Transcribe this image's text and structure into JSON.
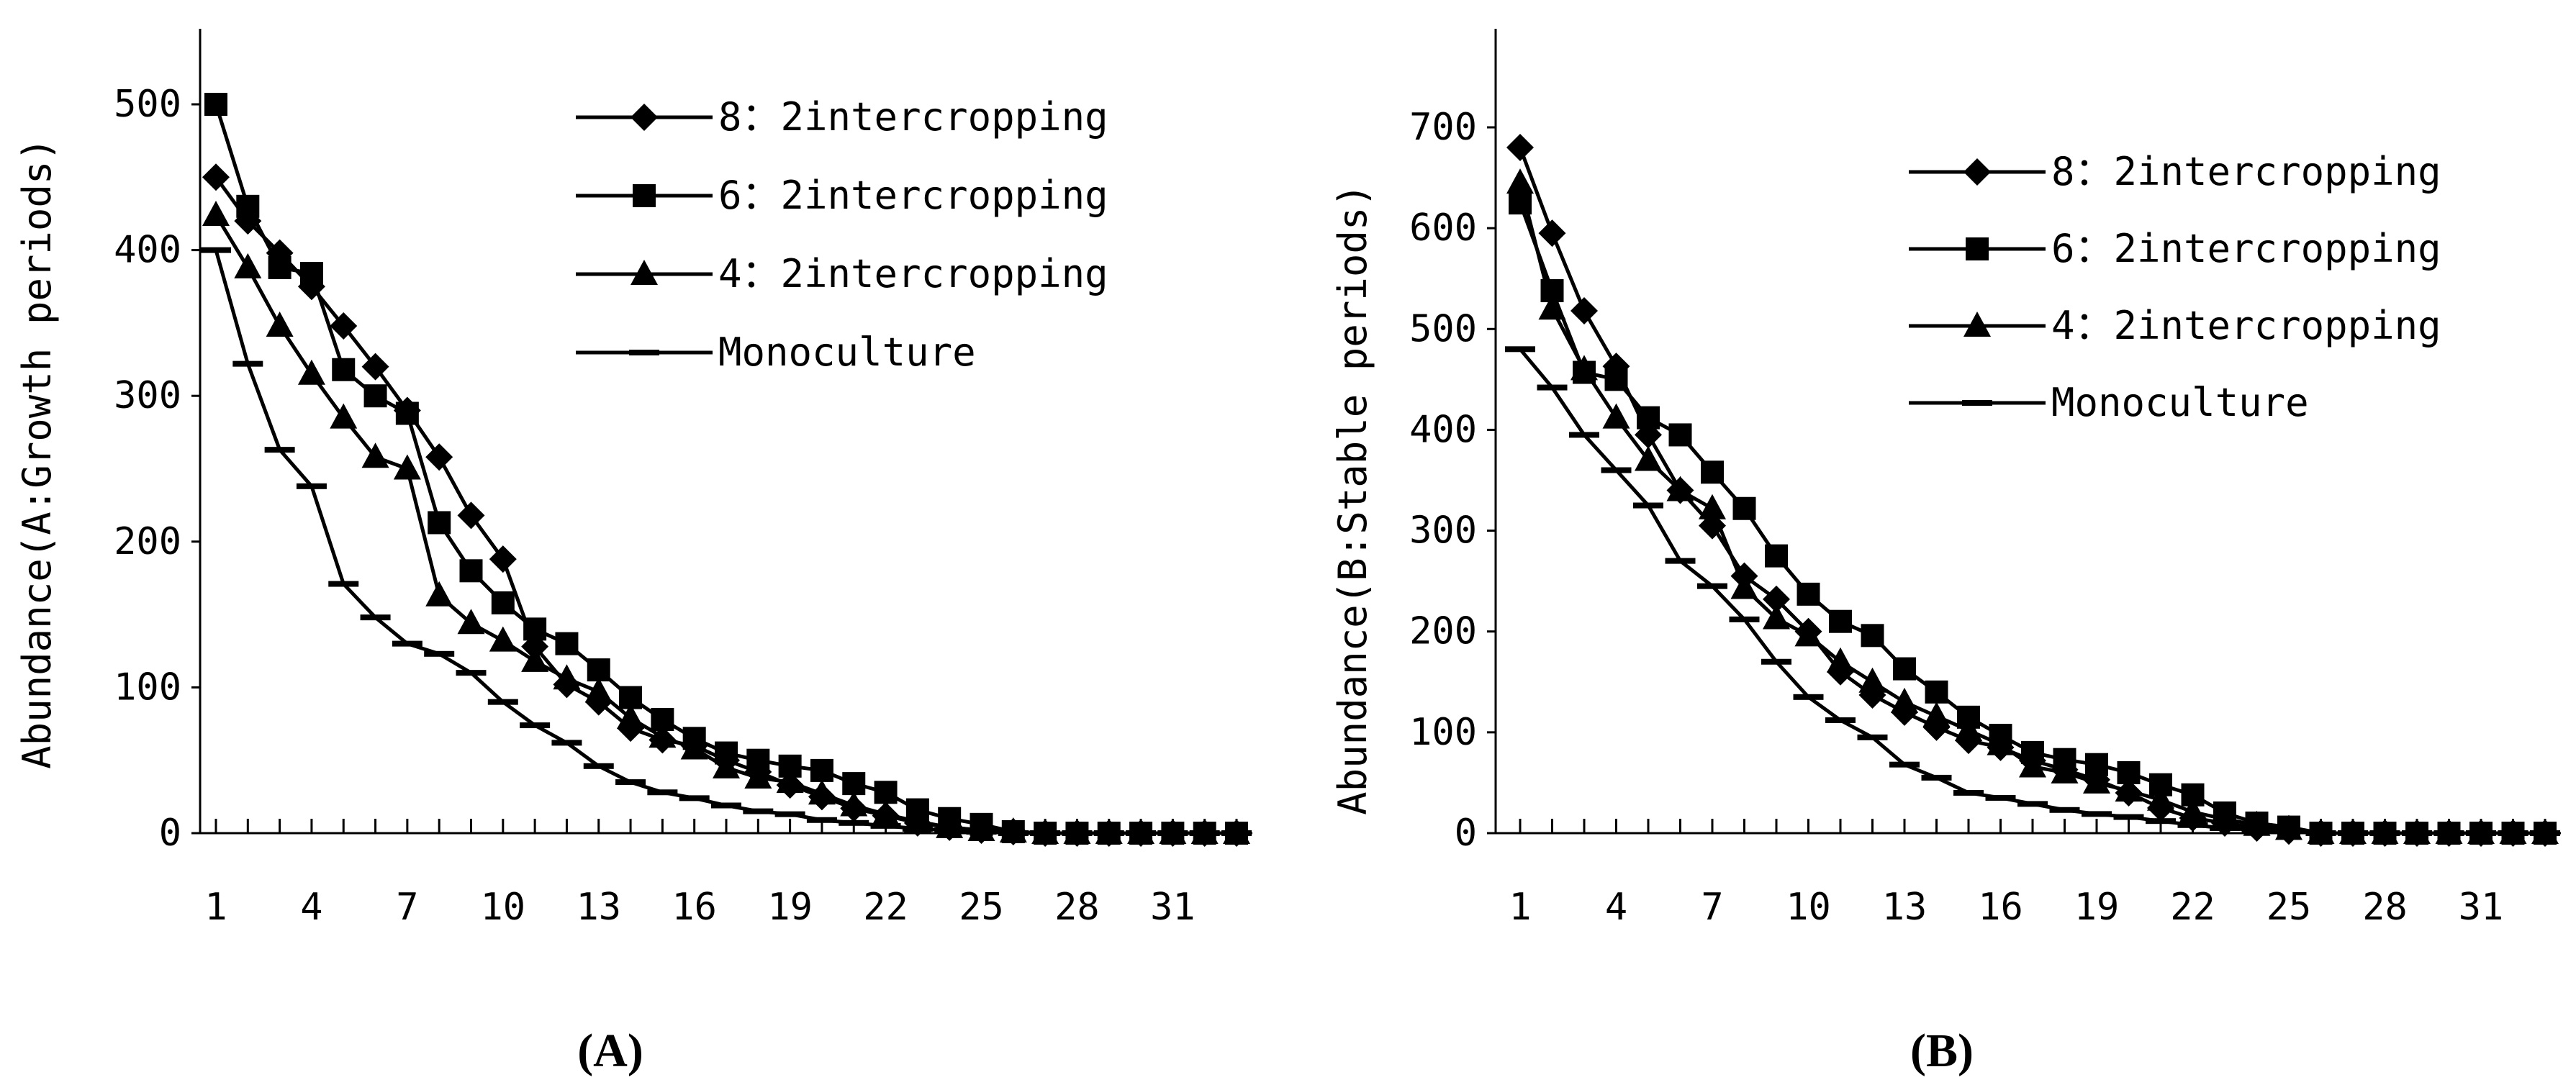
{
  "figure": {
    "panel_labels": [
      "(A)",
      "(B)"
    ]
  },
  "chart_data": [
    {
      "type": "line",
      "panel": "(A)",
      "ylabel": "Abundance(A:Growth periods)",
      "xlabel": "",
      "xlim": [
        1,
        33
      ],
      "ylim": [
        0,
        500
      ],
      "x_ticks": [
        "1",
        "4",
        "7",
        "10",
        "13",
        "16",
        "19",
        "22",
        "25",
        "28",
        "31"
      ],
      "y_ticks": [
        "0",
        "100",
        "200",
        "300",
        "400",
        "500"
      ],
      "legend_position": "top-right",
      "grid": false,
      "x": [
        1,
        2,
        3,
        4,
        5,
        6,
        7,
        8,
        9,
        10,
        11,
        12,
        13,
        14,
        15,
        16,
        17,
        18,
        19,
        20,
        21,
        22,
        23,
        24,
        25,
        26,
        27,
        28,
        29,
        30,
        31,
        32,
        33
      ],
      "series": [
        {
          "name": "8：2intercropping",
          "marker": "diamond",
          "values": [
            450,
            420,
            398,
            375,
            348,
            320,
            290,
            258,
            218,
            188,
            128,
            102,
            90,
            72,
            64,
            60,
            50,
            42,
            33,
            25,
            17,
            12,
            7,
            4,
            2,
            1,
            0,
            0,
            0,
            0,
            0,
            0,
            0
          ]
        },
        {
          "name": "6：2intercropping",
          "marker": "square",
          "values": [
            500,
            430,
            388,
            384,
            318,
            300,
            288,
            213,
            180,
            158,
            140,
            130,
            112,
            93,
            78,
            65,
            55,
            50,
            46,
            43,
            34,
            28,
            16,
            10,
            6,
            1,
            0,
            0,
            0,
            0,
            0,
            0,
            0
          ]
        },
        {
          "name": "4：2intercropping",
          "marker": "triangle",
          "values": [
            424,
            388,
            348,
            315,
            285,
            258,
            250,
            163,
            144,
            132,
            118,
            106,
            97,
            79,
            66,
            58,
            45,
            38,
            35,
            27,
            19,
            13,
            8,
            4,
            2,
            1,
            0,
            0,
            0,
            0,
            0,
            0,
            0
          ]
        },
        {
          "name": "Monoculture",
          "marker": "dash",
          "values": [
            400,
            322,
            263,
            238,
            171,
            148,
            130,
            123,
            110,
            90,
            74,
            62,
            46,
            35,
            28,
            24,
            19,
            15,
            13,
            9,
            7,
            5,
            3,
            2,
            1,
            0,
            0,
            0,
            0,
            0,
            0,
            0,
            0
          ]
        }
      ]
    },
    {
      "type": "line",
      "panel": "(B)",
      "ylabel": "Abundance(B:Stable periods)",
      "xlabel": "",
      "xlim": [
        1,
        33
      ],
      "ylim": [
        0,
        700
      ],
      "x_ticks": [
        "1",
        "4",
        "7",
        "10",
        "13",
        "16",
        "19",
        "22",
        "25",
        "28",
        "31"
      ],
      "y_ticks": [
        "0",
        "100",
        "200",
        "300",
        "400",
        "500",
        "600",
        "700"
      ],
      "legend_position": "top-right",
      "grid": false,
      "x": [
        1,
        2,
        3,
        4,
        5,
        6,
        7,
        8,
        9,
        10,
        11,
        12,
        13,
        14,
        15,
        16,
        17,
        18,
        19,
        20,
        21,
        22,
        23,
        24,
        25,
        26,
        27,
        28,
        29,
        30,
        31,
        32,
        33
      ],
      "series": [
        {
          "name": "8：2intercropping",
          "marker": "diamond",
          "values": [
            680,
            595,
            518,
            463,
            395,
            340,
            305,
            255,
            232,
            200,
            160,
            137,
            120,
            105,
            92,
            85,
            72,
            63,
            53,
            40,
            25,
            15,
            10,
            5,
            2,
            0,
            0,
            0,
            0,
            0,
            0,
            0,
            0
          ]
        },
        {
          "name": "6：2intercropping",
          "marker": "square",
          "values": [
            625,
            538,
            457,
            450,
            412,
            395,
            358,
            322,
            275,
            237,
            210,
            196,
            163,
            140,
            115,
            97,
            80,
            73,
            68,
            60,
            48,
            38,
            20,
            10,
            6,
            0,
            0,
            0,
            0,
            0,
            0,
            0,
            0
          ]
        },
        {
          "name": "4：2intercropping",
          "marker": "triangle",
          "values": [
            645,
            520,
            460,
            412,
            370,
            340,
            322,
            243,
            213,
            196,
            170,
            150,
            130,
            116,
            102,
            88,
            66,
            60,
            50,
            42,
            33,
            21,
            14,
            8,
            4,
            0,
            0,
            0,
            0,
            0,
            0,
            0,
            0
          ]
        },
        {
          "name": "Monoculture",
          "marker": "dash",
          "values": [
            480,
            442,
            395,
            360,
            325,
            270,
            245,
            212,
            170,
            135,
            112,
            95,
            68,
            55,
            40,
            35,
            29,
            23,
            19,
            16,
            12,
            8,
            5,
            3,
            2,
            0,
            0,
            0,
            0,
            0,
            0,
            0,
            0
          ]
        }
      ]
    }
  ]
}
